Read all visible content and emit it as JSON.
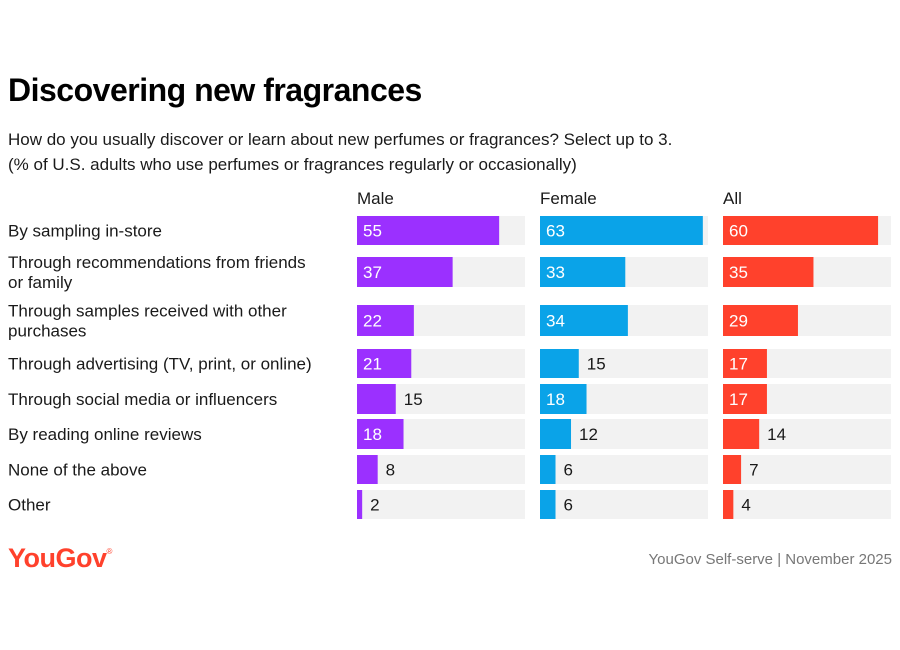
{
  "title": "Discovering new fragrances",
  "subtitle_line1": "How do you usually discover or learn about new perfumes or fragrances? Select up to 3.",
  "subtitle_line2": "(% of U.S. adults who use perfumes or fragrances regularly or occasionally)",
  "footer": {
    "logo": "YouGov",
    "source": "YouGov Self-serve | November 2025"
  },
  "chart_data": {
    "type": "bar",
    "orientation": "horizontal",
    "categories": [
      [
        "By sampling in-store"
      ],
      [
        "Through recommendations from friends",
        "or family"
      ],
      [
        "Through samples received with other",
        "purchases"
      ],
      [
        "Through advertising (TV, print, or online)"
      ],
      [
        "Through social media or influencers"
      ],
      [
        "By reading online reviews"
      ],
      [
        "None of the above"
      ],
      [
        "Other"
      ]
    ],
    "series": [
      {
        "name": "Male",
        "color": "#9b30ff",
        "values": [
          55,
          37,
          22,
          21,
          15,
          18,
          8,
          2
        ]
      },
      {
        "name": "Female",
        "color": "#0aa3e8",
        "values": [
          63,
          33,
          34,
          15,
          18,
          12,
          6,
          6
        ]
      },
      {
        "name": "All",
        "color": "#ff412c",
        "values": [
          60,
          35,
          29,
          17,
          17,
          14,
          7,
          4
        ]
      }
    ],
    "xlim": [
      0,
      65
    ],
    "background_track_color": "#f2f2f2"
  }
}
